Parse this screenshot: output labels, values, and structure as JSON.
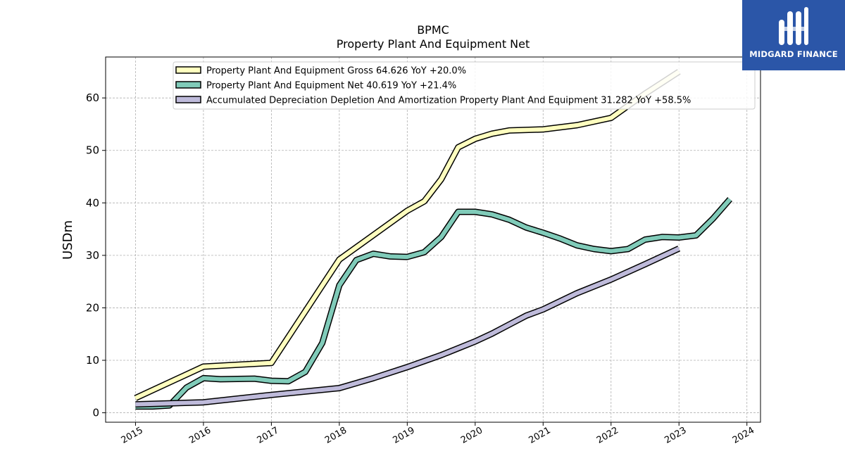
{
  "chart_data": {
    "type": "line",
    "title": "BPMC",
    "subtitle": "Property Plant And Equipment Net",
    "ylabel": "USDm",
    "xlabel": "",
    "xlim": [
      2014.56,
      2024.2
    ],
    "ylim": [
      -1.8,
      67.8
    ],
    "x_ticks": [
      2015,
      2016,
      2017,
      2018,
      2019,
      2020,
      2021,
      2022,
      2023,
      2024
    ],
    "x_tick_labels": [
      "2015",
      "2016",
      "2017",
      "2018",
      "2019",
      "2020",
      "2021",
      "2022",
      "2023",
      "2024"
    ],
    "y_ticks": [
      0,
      10,
      20,
      30,
      40,
      50,
      60
    ],
    "y_tick_labels": [
      "0",
      "10",
      "20",
      "30",
      "40",
      "50",
      "60"
    ],
    "grid": true,
    "legend_position": "top-center",
    "series": [
      {
        "name": "Property Plant And Equipment Gross  64.626 YoY +20.0%",
        "color": "#ffffbf",
        "points": [
          [
            2015.0,
            2.8
          ],
          [
            2016.0,
            8.8
          ],
          [
            2017.0,
            9.5
          ],
          [
            2018.0,
            29.2
          ],
          [
            2019.0,
            38.5
          ],
          [
            2019.25,
            40.3
          ],
          [
            2019.5,
            44.5
          ],
          [
            2019.75,
            50.6
          ],
          [
            2020.0,
            52.2
          ],
          [
            2020.25,
            53.2
          ],
          [
            2020.5,
            53.8
          ],
          [
            2021.0,
            54.0
          ],
          [
            2021.5,
            54.8
          ],
          [
            2022.0,
            56.2
          ],
          [
            2022.5,
            60.8
          ],
          [
            2023.0,
            65.0
          ]
        ]
      },
      {
        "name": "Property Plant And Equipment Net  40.619 YoY +21.4%",
        "color": "#80cbb9",
        "points": [
          [
            2015.0,
            1.2
          ],
          [
            2015.25,
            1.2
          ],
          [
            2015.5,
            1.4
          ],
          [
            2015.75,
            4.8
          ],
          [
            2016.0,
            6.6
          ],
          [
            2016.25,
            6.4
          ],
          [
            2016.75,
            6.5
          ],
          [
            2017.0,
            6.1
          ],
          [
            2017.25,
            6.0
          ],
          [
            2017.5,
            7.8
          ],
          [
            2017.75,
            13.3
          ],
          [
            2018.0,
            24.3
          ],
          [
            2018.25,
            29.1
          ],
          [
            2018.5,
            30.3
          ],
          [
            2018.75,
            29.8
          ],
          [
            2019.0,
            29.7
          ],
          [
            2019.25,
            30.6
          ],
          [
            2019.5,
            33.5
          ],
          [
            2019.75,
            38.3
          ],
          [
            2020.0,
            38.3
          ],
          [
            2020.25,
            37.8
          ],
          [
            2020.5,
            36.8
          ],
          [
            2020.75,
            35.3
          ],
          [
            2021.0,
            34.3
          ],
          [
            2021.25,
            33.2
          ],
          [
            2021.5,
            31.9
          ],
          [
            2021.75,
            31.2
          ],
          [
            2022.0,
            30.8
          ],
          [
            2022.25,
            31.2
          ],
          [
            2022.5,
            33.0
          ],
          [
            2022.75,
            33.5
          ],
          [
            2023.0,
            33.4
          ],
          [
            2023.25,
            33.8
          ],
          [
            2023.5,
            37.0
          ],
          [
            2023.75,
            40.7
          ]
        ]
      },
      {
        "name": "Accumulated Depreciation Depletion And Amortization Property Plant And Equipment  31.282 YoY +58.5%",
        "color": "#bebada",
        "points": [
          [
            2015.0,
            1.6
          ],
          [
            2016.0,
            2.0
          ],
          [
            2017.0,
            3.4
          ],
          [
            2018.0,
            4.7
          ],
          [
            2018.5,
            6.6
          ],
          [
            2019.0,
            8.7
          ],
          [
            2019.5,
            11.0
          ],
          [
            2019.75,
            12.3
          ],
          [
            2020.0,
            13.6
          ],
          [
            2020.25,
            15.1
          ],
          [
            2020.5,
            16.8
          ],
          [
            2020.75,
            18.5
          ],
          [
            2021.0,
            19.7
          ],
          [
            2021.5,
            22.8
          ],
          [
            2022.0,
            25.4
          ],
          [
            2022.5,
            28.3
          ],
          [
            2023.0,
            31.3
          ]
        ]
      }
    ]
  },
  "logo": {
    "text": "MIDGARD FINANCE"
  }
}
